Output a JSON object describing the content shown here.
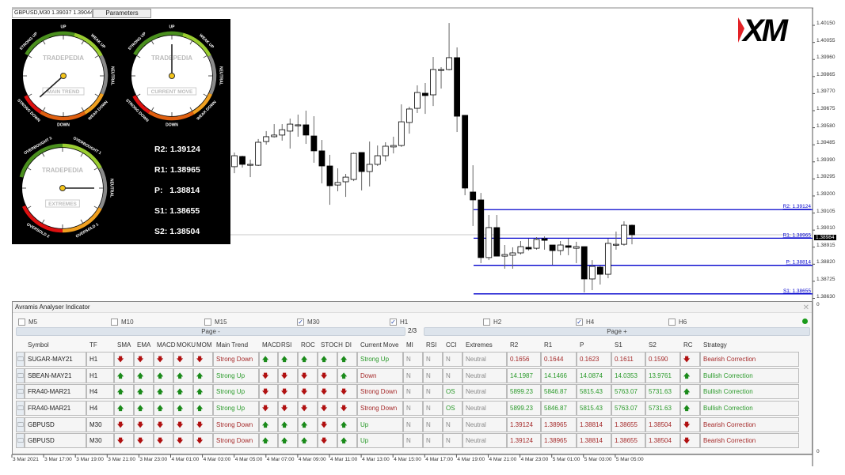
{
  "window": {
    "tab_label": "GBPUSD,M30  1.39037 1.39044 1.38",
    "parameters_label": "Parameters"
  },
  "colors": {
    "bull": "#ffffff",
    "bear": "#000000",
    "pivot_line": "#0000cc",
    "accent_red": "#a52a2a",
    "accent_green": "#2a9a2a"
  },
  "logo": {
    "text": "XM"
  },
  "price_axis": {
    "labels": [
      "1.40150",
      "1.40055",
      "1.39960",
      "1.39865",
      "1.39770",
      "1.39675",
      "1.39580",
      "1.39485",
      "1.39390",
      "1.39295",
      "1.39200",
      "1.39105",
      "1.39010",
      "1.38915",
      "1.38820",
      "1.38725",
      "1.38630"
    ],
    "current_price": "1.38984",
    "sub_zero_top": "0",
    "sub_zero_bottom": "0"
  },
  "time_axis": {
    "labels": [
      "3 Mar 2021",
      "3 Mar 17:00",
      "3 Mar 19:00",
      "3 Mar 21:00",
      "3 Mar 23:00",
      "4 Mar 01:00",
      "4 Mar 03:00",
      "4 Mar 05:00",
      "4 Mar 07:00",
      "4 Mar 09:00",
      "4 Mar 11:00",
      "4 Mar 13:00",
      "4 Mar 15:00",
      "4 Mar 17:00",
      "4 Mar 19:00",
      "4 Mar 21:00",
      "4 Mar 23:00",
      "5 Mar 01:00",
      "5 Mar 03:00",
      "5 Mar 05:00"
    ]
  },
  "pivot_lines": [
    {
      "label": "R2: 1.39124",
      "price": 1.39124
    },
    {
      "label": "R1: 1.38965",
      "price": 1.38965
    },
    {
      "label": "P: 1.38814",
      "price": 1.38814
    },
    {
      "label": "S1: 1.38655",
      "price": 1.38655
    }
  ],
  "candles_ohlc": [
    [
      1.39363,
      1.39442,
      1.39327,
      1.39424
    ],
    [
      1.3942,
      1.39424,
      1.39358,
      1.39376
    ],
    [
      1.39376,
      1.39402,
      1.39305,
      1.39376
    ],
    [
      1.39371,
      1.39517,
      1.39367,
      1.39499
    ],
    [
      1.39503,
      1.39561,
      1.39486,
      1.3953
    ],
    [
      1.3953,
      1.396,
      1.39525,
      1.39539
    ],
    [
      1.39539,
      1.396,
      1.39508,
      1.39569
    ],
    [
      1.39561,
      1.39631,
      1.39464,
      1.396
    ],
    [
      1.39596,
      1.39653,
      1.3953,
      1.39596
    ],
    [
      1.39596,
      1.39675,
      1.3949,
      1.39539
    ],
    [
      1.39534,
      1.39644,
      1.39385,
      1.39451
    ],
    [
      1.39451,
      1.39512,
      1.3927,
      1.39367
    ],
    [
      1.39367,
      1.39429,
      1.39151,
      1.39257
    ],
    [
      1.39261,
      1.39354,
      1.39226,
      1.39275
    ],
    [
      1.39279,
      1.39323,
      1.39195,
      1.39305
    ],
    [
      1.39292,
      1.39442,
      1.39283,
      1.39437
    ],
    [
      1.39442,
      1.39442,
      1.39231,
      1.39336
    ],
    [
      1.39336,
      1.39503,
      1.39253,
      1.39376
    ],
    [
      1.39376,
      1.39481,
      1.39367,
      1.39424
    ],
    [
      1.39424,
      1.39499,
      1.39393,
      1.39477
    ],
    [
      1.39473,
      1.3953,
      1.39437,
      1.39481
    ],
    [
      1.39481,
      1.3971,
      1.39473,
      1.39613
    ],
    [
      1.39609,
      1.39697,
      1.39547,
      1.39684
    ],
    [
      1.39688,
      1.39816,
      1.39662,
      1.39776
    ],
    [
      1.39772,
      1.39829,
      1.39657,
      1.39759
    ],
    [
      1.39763,
      1.39974,
      1.39701,
      1.39904
    ],
    [
      1.39904,
      1.39917,
      1.39798,
      1.39904
    ],
    [
      1.39904,
      1.40163,
      1.39899,
      1.3997
    ],
    [
      1.3997,
      1.40027,
      1.39556,
      1.39644
    ],
    [
      1.39649,
      1.39649,
      1.39204,
      1.39244
    ],
    [
      1.39222,
      1.39371,
      1.39033,
      1.39178
    ],
    [
      1.39178,
      1.39217,
      1.38826,
      1.38857
    ],
    [
      1.38857,
      1.39094,
      1.38843,
      1.39024
    ],
    [
      1.39024,
      1.39094,
      1.38865,
      1.38865
    ],
    [
      1.38865,
      1.38927,
      1.38795,
      1.38874
    ],
    [
      1.3887,
      1.38914,
      1.38795,
      1.38883
    ],
    [
      1.38883,
      1.38949,
      1.38874,
      1.38918
    ],
    [
      1.38914,
      1.38962,
      1.38896,
      1.38905
    ],
    [
      1.38909,
      1.38971,
      1.38901,
      1.38958
    ],
    [
      1.38962,
      1.38975,
      1.38901,
      1.38953
    ],
    [
      1.38927,
      1.38927,
      1.38817,
      1.38896
    ],
    [
      1.38896,
      1.38949,
      1.3887,
      1.38927
    ],
    [
      1.38923,
      1.38962,
      1.3887,
      1.38914
    ],
    [
      1.38909,
      1.38945,
      1.38826,
      1.38918
    ],
    [
      1.38918,
      1.38918,
      1.38663,
      1.38738
    ],
    [
      1.38738,
      1.38843,
      1.38676,
      1.38808
    ],
    [
      1.38804,
      1.38813,
      1.38707,
      1.38764
    ],
    [
      1.38764,
      1.38962,
      1.38742,
      1.38936
    ],
    [
      1.38931,
      1.39002,
      1.38901,
      1.38931
    ],
    [
      1.38931,
      1.39059,
      1.38923,
      1.39037
    ],
    [
      1.39037,
      1.39041,
      1.38931,
      1.38984
    ]
  ],
  "gauges": [
    {
      "brand": "TRADEPEDIA",
      "title": "MAIN TREND",
      "labels": [
        "STRONG UP",
        "UP",
        "WEAK UP",
        "NEUTRAL",
        "WEAK DOWN",
        "DOWN",
        "STRONG DOWN"
      ],
      "reading": "Strong Down"
    },
    {
      "brand": "TRADEPEDIA",
      "title": "CURRENT MOVE",
      "labels": [
        "STRONG UP",
        "UP",
        "WEAK UP",
        "NEUTRAL",
        "WEAK DOWN",
        "DOWN",
        "STRONG DOWN"
      ],
      "reading": "Up"
    },
    {
      "brand": "TRADEPEDIA",
      "title": "EXTREMES",
      "labels": [
        "OVERBOUGHT 2",
        "OVERBOUGHT 1",
        "NEUTRAL",
        "OVERSOLD 1",
        "OVERSOLD 2"
      ],
      "reading": "Neutral"
    }
  ],
  "pivots_panel": {
    "r2": "R2: 1.39124",
    "r1": "R1: 1.38965",
    "p": "P:   1.38814",
    "s1": "S1: 1.38655",
    "s2": "S2: 1.38504"
  },
  "analyser": {
    "title": "Avramis Analyser Indicator",
    "timeframes": [
      {
        "label": "M5",
        "checked": false
      },
      {
        "label": "M10",
        "checked": false
      },
      {
        "label": "M15",
        "checked": false
      },
      {
        "label": "M30",
        "checked": true
      },
      {
        "label": "H1",
        "checked": true
      },
      {
        "label": "H2",
        "checked": false
      },
      {
        "label": "H4",
        "checked": true
      },
      {
        "label": "H6",
        "checked": false
      }
    ],
    "page_prev": "Page -",
    "page_next": "Page +",
    "page_indicator": "2/3",
    "status": "connected",
    "columns": [
      "",
      "Symbol",
      "TF",
      "SMA",
      "EMA",
      "MACD",
      "MOKU",
      "MOM",
      "Main Trend",
      "MACD",
      "RSI",
      "ROC",
      "STOCH",
      "DI",
      "Current Move",
      "MI",
      "RSI",
      "CCI",
      "Extremes",
      "R2",
      "R1",
      "P",
      "S1",
      "S2",
      "RC",
      "Strategy"
    ],
    "rows": [
      {
        "symbol": "SUGAR-MAY21",
        "tf": "H1",
        "trend_arrows": [
          "down",
          "down",
          "down",
          "down",
          "down"
        ],
        "main_trend": "Strong Down",
        "move_arrows": [
          "up",
          "up",
          "up",
          "up",
          "up"
        ],
        "current_move": "Strong Up",
        "mi": "N",
        "rsi": "N",
        "cci": "N",
        "extremes": "Neutral",
        "r2": "0.1656",
        "r1": "0.1644",
        "p": "0.1623",
        "s1": "0.1611",
        "s2": "0.1590",
        "rc": "down",
        "strategy": "Bearish Correction"
      },
      {
        "symbol": "SBEAN-MAY21",
        "tf": "H1",
        "trend_arrows": [
          "up",
          "up",
          "up",
          "up",
          "up"
        ],
        "main_trend": "Strong Up",
        "move_arrows": [
          "down",
          "down",
          "down",
          "down",
          "up"
        ],
        "current_move": "Down",
        "mi": "N",
        "rsi": "N",
        "cci": "N",
        "extremes": "Neutral",
        "r2": "14.1987",
        "r1": "14.1466",
        "p": "14.0874",
        "s1": "14.0353",
        "s2": "13.9761",
        "rc": "up",
        "strategy": "Bullish Correction"
      },
      {
        "symbol": "FRA40-MAR21",
        "tf": "H4",
        "trend_arrows": [
          "up",
          "up",
          "up",
          "up",
          "up"
        ],
        "main_trend": "Strong Up",
        "move_arrows": [
          "down",
          "down",
          "down",
          "down",
          "down"
        ],
        "current_move": "Strong Down",
        "mi": "N",
        "rsi": "N",
        "cci": "OS",
        "extremes": "Neutral",
        "r2": "5899.23",
        "r1": "5846.87",
        "p": "5815.43",
        "s1": "5763.07",
        "s2": "5731.63",
        "rc": "up",
        "strategy": "Bullish Correction"
      },
      {
        "symbol": "FRA40-MAR21",
        "tf": "H4",
        "trend_arrows": [
          "up",
          "up",
          "up",
          "up",
          "up"
        ],
        "main_trend": "Strong Up",
        "move_arrows": [
          "down",
          "down",
          "down",
          "down",
          "down"
        ],
        "current_move": "Strong Down",
        "mi": "N",
        "rsi": "N",
        "cci": "OS",
        "extremes": "Neutral",
        "r2": "5899.23",
        "r1": "5846.87",
        "p": "5815.43",
        "s1": "5763.07",
        "s2": "5731.63",
        "rc": "up",
        "strategy": "Bullish Correction"
      },
      {
        "symbol": "GBPUSD",
        "tf": "M30",
        "trend_arrows": [
          "down",
          "down",
          "down",
          "down",
          "down"
        ],
        "main_trend": "Strong Down",
        "move_arrows": [
          "up",
          "up",
          "up",
          "down",
          "up"
        ],
        "current_move": "Up",
        "mi": "N",
        "rsi": "N",
        "cci": "N",
        "extremes": "Neutral",
        "r2": "1.39124",
        "r1": "1.38965",
        "p": "1.38814",
        "s1": "1.38655",
        "s2": "1.38504",
        "rc": "down",
        "strategy": "Bearish Correction"
      },
      {
        "symbol": "GBPUSD",
        "tf": "M30",
        "trend_arrows": [
          "down",
          "down",
          "down",
          "down",
          "down"
        ],
        "main_trend": "Strong Down",
        "move_arrows": [
          "up",
          "up",
          "up",
          "down",
          "up"
        ],
        "current_move": "Up",
        "mi": "N",
        "rsi": "N",
        "cci": "N",
        "extremes": "Neutral",
        "r2": "1.39124",
        "r1": "1.38965",
        "p": "1.38814",
        "s1": "1.38655",
        "s2": "1.38504",
        "rc": "down",
        "strategy": "Bearish Correction"
      }
    ]
  }
}
